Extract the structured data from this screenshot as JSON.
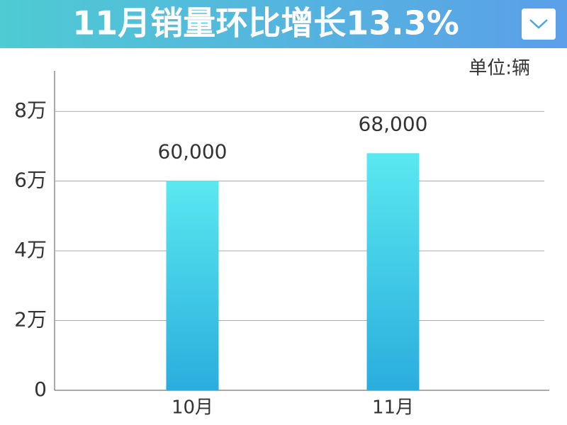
{
  "chart_data": {
    "type": "bar",
    "title": "11月销量环比增长13.3%",
    "unit_label": "单位:辆",
    "categories": [
      "10月",
      "11月"
    ],
    "values": [
      60000,
      68000
    ],
    "value_labels": [
      "60,000",
      "68,000"
    ],
    "color": [
      "#5ae8f0",
      "#2aaddd"
    ],
    "ylim": [
      0,
      90000
    ],
    "yticks": [
      0,
      {
        "value": 20000,
        "label": "2万"
      },
      {
        "value": 40000,
        "label": "4万"
      },
      {
        "value": 60000,
        "label": "6万"
      },
      {
        "value": 80000,
        "label": "8万"
      }
    ],
    "grid": true
  }
}
